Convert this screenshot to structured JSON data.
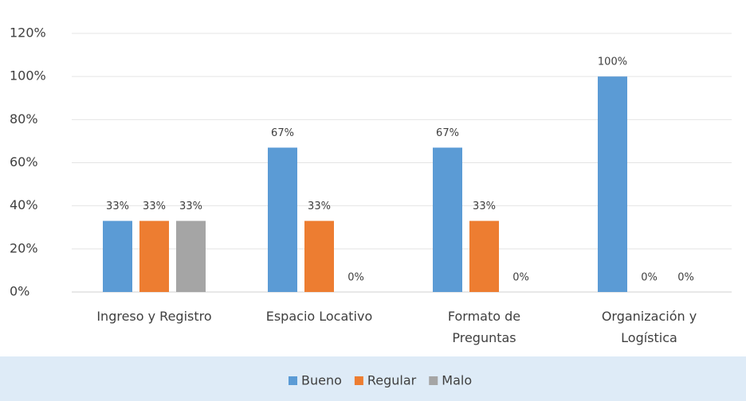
{
  "chart_data": {
    "type": "bar",
    "categories": [
      "Ingreso y Registro",
      "Espacio Locativo",
      "Formato de Preguntas",
      "Organización y Logística"
    ],
    "series": [
      {
        "name": "Bueno",
        "color": "#5b9bd5",
        "values": [
          33,
          67,
          67,
          100
        ],
        "value_labels": [
          "33%",
          "67%",
          "67%",
          "100%"
        ]
      },
      {
        "name": "Regular",
        "color": "#ed7d31",
        "values": [
          33,
          33,
          33,
          0
        ],
        "value_labels": [
          "33%",
          "33%",
          "33%",
          "0%"
        ]
      },
      {
        "name": "Malo",
        "color": "#a5a5a5",
        "values": [
          33,
          0,
          0,
          0
        ],
        "value_labels": [
          "33%",
          "0%",
          "0%",
          "0%"
        ]
      }
    ],
    "ylim": [
      0,
      120
    ],
    "yticks": [
      {
        "value": 0,
        "label": "0%"
      },
      {
        "value": 20,
        "label": "20%"
      },
      {
        "value": 40,
        "label": "40%"
      },
      {
        "value": 60,
        "label": "60%"
      },
      {
        "value": 80,
        "label": "80%"
      },
      {
        "value": 100,
        "label": "100%"
      },
      {
        "value": 120,
        "label": "120%"
      }
    ],
    "grid": true,
    "legend": "bottom"
  }
}
